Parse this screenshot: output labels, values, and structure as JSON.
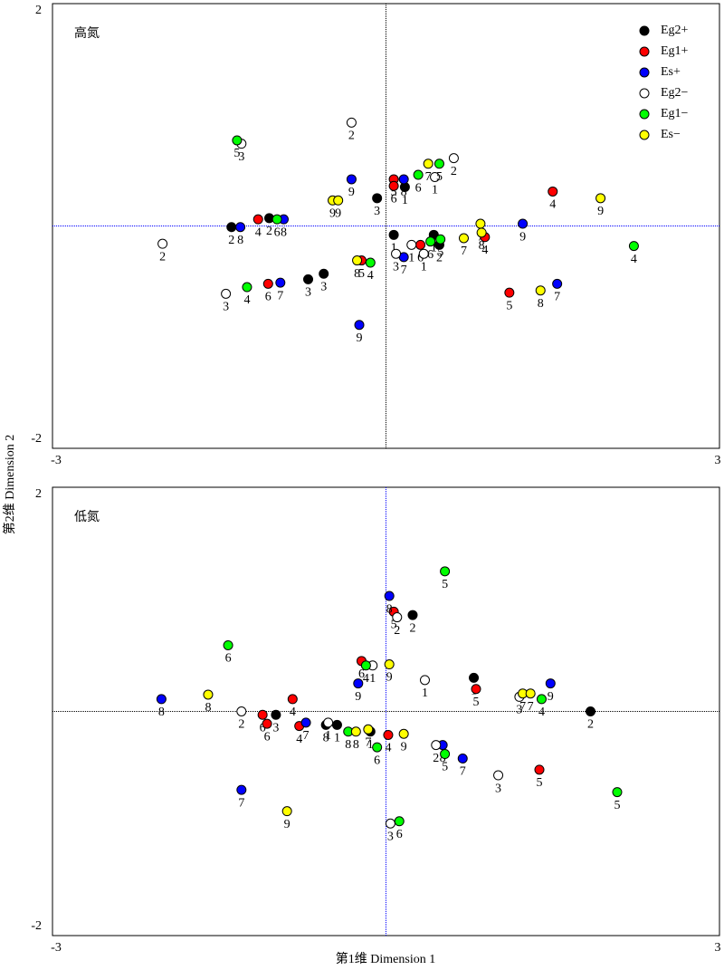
{
  "chart_data": [
    {
      "type": "scatter",
      "title": "高氮",
      "ylabel": "第2维 Dimension 2",
      "xlim": [
        -3,
        3
      ],
      "ylim": [
        -2,
        2
      ],
      "xticks": [
        -3,
        3
      ],
      "yticks": [
        -2,
        2
      ],
      "vline_color": "#000000",
      "hline_color": "#0000ff",
      "legend": "upper right",
      "series": [
        {
          "name": "Eg2+",
          "color": "#000000",
          "x": [
            -1.39,
            -1.05,
            -0.7,
            -0.56,
            -0.08,
            0.07,
            0.17,
            0.43,
            0.48
          ],
          "y": [
            -0.01,
            0.07,
            -0.48,
            -0.43,
            0.25,
            -0.08,
            0.35,
            -0.08,
            -0.17
          ],
          "labels": [
            "2",
            "2",
            "3",
            "3",
            "3",
            "1",
            "1",
            "1",
            "2"
          ]
        },
        {
          "name": "Eg1+",
          "color": "#ff0000",
          "x": [
            -1.15,
            -1.06,
            -0.22,
            0.07,
            0.07,
            0.31,
            0.89,
            1.11,
            1.5
          ],
          "y": [
            0.06,
            -0.52,
            -0.31,
            0.42,
            0.36,
            -0.17,
            -0.1,
            -0.6,
            0.31
          ],
          "labels": [
            "4",
            "6",
            "5",
            "5",
            "6",
            "6",
            "4",
            "5",
            "4"
          ]
        },
        {
          "name": "Es+",
          "color": "#0000ff",
          "x": [
            -1.31,
            -0.95,
            -0.92,
            -0.31,
            -0.24,
            0.16,
            0.16,
            1.23,
            1.54
          ],
          "y": [
            -0.01,
            -0.51,
            0.06,
            0.42,
            -0.89,
            0.42,
            -0.28,
            0.02,
            -0.52
          ],
          "labels": [
            "8",
            "7",
            "8",
            "9",
            "9",
            "8",
            "7",
            "9",
            "7"
          ]
        },
        {
          "name": "Eg2−",
          "color": "#ffffff",
          "x": [
            -2.01,
            -1.44,
            -1.3,
            -0.31,
            0.09,
            0.23,
            0.34,
            0.44,
            0.61
          ],
          "y": [
            -0.16,
            -0.61,
            0.74,
            0.93,
            -0.25,
            -0.17,
            -0.25,
            0.44,
            0.61
          ],
          "labels": [
            "2",
            "3",
            "3",
            "2",
            "3",
            "1",
            "1",
            "1",
            "2"
          ]
        },
        {
          "name": "Eg1−",
          "color": "#00ff00",
          "x": [
            -1.34,
            -1.25,
            -0.98,
            -0.14,
            0.29,
            0.4,
            0.48,
            0.49,
            2.23
          ],
          "y": [
            0.77,
            -0.55,
            0.06,
            -0.33,
            0.46,
            -0.14,
            0.56,
            -0.12,
            -0.18
          ],
          "labels": [
            "5",
            "4",
            "6",
            "4",
            "6",
            "6",
            "5",
            "5",
            "4"
          ]
        },
        {
          "name": "Es−",
          "color": "#ffff00",
          "x": [
            -0.48,
            -0.43,
            -0.26,
            0.38,
            0.7,
            0.85,
            0.86,
            1.39,
            1.93
          ],
          "y": [
            0.23,
            0.23,
            -0.31,
            0.56,
            -0.11,
            0.02,
            -0.06,
            -0.58,
            0.25
          ],
          "labels": [
            "9",
            "9",
            "8",
            "7",
            "7",
            "7",
            "8",
            "8",
            "9"
          ]
        }
      ]
    },
    {
      "type": "scatter",
      "title": "低氮",
      "xlabel": "第1维 Dimension 1",
      "xlim": [
        -3,
        3
      ],
      "ylim": [
        -2,
        2
      ],
      "xticks": [
        -3,
        3
      ],
      "yticks": [
        -2,
        2
      ],
      "vline_color": "#0000ff",
      "hline_color": "#000000",
      "series": [
        {
          "name": "Eg2+",
          "color": "#000000",
          "x": [
            -0.99,
            -0.54,
            -0.44,
            -0.14,
            0.24,
            0.79,
            1.84
          ],
          "y": [
            -0.03,
            -0.12,
            -0.12,
            -0.18,
            0.86,
            0.3,
            0.0
          ],
          "labels": [
            "3",
            "8",
            "1",
            "1",
            "2",
            "1",
            "2"
          ]
        },
        {
          "name": "Eg1+",
          "color": "#ff0000",
          "x": [
            -1.11,
            -1.07,
            -0.84,
            -0.78,
            -0.22,
            0.02,
            0.07,
            0.81,
            1.38
          ],
          "y": [
            -0.03,
            -0.11,
            0.11,
            -0.13,
            0.45,
            -0.21,
            0.89,
            0.2,
            -0.52
          ],
          "labels": [
            "6",
            "6",
            "4",
            "4",
            "6",
            "4",
            "5",
            "5",
            "5"
          ]
        },
        {
          "name": "Es+",
          "color": "#0000ff",
          "x": [
            -2.02,
            -1.3,
            -0.72,
            -0.25,
            0.03,
            0.51,
            0.69,
            1.48
          ],
          "y": [
            0.11,
            -0.7,
            -0.1,
            0.25,
            1.03,
            -0.3,
            -0.42,
            0.25
          ],
          "labels": [
            "8",
            "7",
            "7",
            "9",
            "8",
            "8",
            "7",
            "9"
          ]
        },
        {
          "name": "Eg2−",
          "color": "#ffffff",
          "x": [
            -1.3,
            -0.52,
            -0.12,
            0.1,
            0.35,
            0.45,
            1.01,
            1.2,
            0.04
          ],
          "y": [
            0.0,
            -0.1,
            0.41,
            0.84,
            0.28,
            -0.3,
            -0.57,
            0.13,
            -1.0
          ],
          "labels": [
            "2",
            "1",
            "1",
            "2",
            "1",
            "2",
            "3",
            "3",
            "3"
          ]
        },
        {
          "name": "Eg1−",
          "color": "#00ff00",
          "x": [
            -1.42,
            -0.34,
            -0.18,
            -0.08,
            0.12,
            0.53,
            0.53,
            1.4,
            2.08
          ],
          "y": [
            0.59,
            -0.18,
            0.41,
            -0.32,
            -0.98,
            1.25,
            -0.38,
            0.11,
            -0.72
          ],
          "labels": [
            "6",
            "8",
            "4",
            "6",
            "6",
            "5",
            "5",
            "4",
            "5"
          ]
        },
        {
          "name": "Es−",
          "color": "#ffff00",
          "x": [
            -1.6,
            -0.89,
            -0.27,
            -0.16,
            0.03,
            0.16,
            1.23,
            1.3
          ],
          "y": [
            0.15,
            -0.89,
            -0.18,
            -0.16,
            0.42,
            -0.2,
            0.16,
            0.16
          ],
          "labels": [
            "8",
            "9",
            "8",
            "7",
            "9",
            "9",
            "7",
            "7"
          ]
        }
      ]
    }
  ]
}
